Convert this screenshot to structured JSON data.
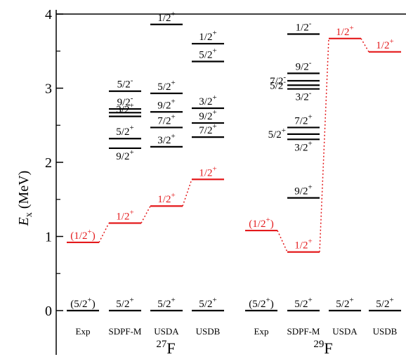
{
  "chart_data": {
    "type": "level-scheme",
    "ylabel": "E",
    "ylabel_sub": "x",
    "ylabel_unit": "(MeV)",
    "ylim": [
      0,
      4
    ],
    "yticks": [
      "0",
      "1",
      "2",
      "3",
      "4"
    ],
    "colors": {
      "positive": "#000000",
      "highlight": "#e41a1c"
    },
    "nuclei": [
      {
        "mass": "27",
        "symbol": "F",
        "columns": [
          {
            "name": "Exp",
            "levels": [
              {
                "e": 0.0,
                "label": "(5/2⁺)",
                "color": "black",
                "lx": 0,
                "side": "center"
              },
              {
                "e": 0.92,
                "label": "(1/2⁺)",
                "color": "red",
                "side": "center"
              }
            ]
          },
          {
            "name": "SDPF-M",
            "levels": [
              {
                "e": 0.0,
                "label": "5/2⁺",
                "color": "black"
              },
              {
                "e": 1.18,
                "label": "1/2⁺",
                "color": "red"
              },
              {
                "e": 2.19,
                "label": "9/2⁺",
                "color": "black",
                "below": true
              },
              {
                "e": 2.32,
                "label": "5/2⁺",
                "color": "black"
              },
              {
                "e": 2.62,
                "label": "3/2⁺",
                "color": "black"
              },
              {
                "e": 2.67,
                "label": "",
                "color": "black"
              },
              {
                "e": 2.72,
                "label": "9/2⁻",
                "color": "black"
              },
              {
                "e": 2.96,
                "label": "5/2⁻",
                "color": "black"
              }
            ]
          },
          {
            "name": "USDA",
            "levels": [
              {
                "e": 0.0,
                "label": "5/2⁺",
                "color": "black"
              },
              {
                "e": 1.41,
                "label": "1/2⁺",
                "color": "red"
              },
              {
                "e": 2.21,
                "label": "3/2⁺",
                "color": "black"
              },
              {
                "e": 2.47,
                "label": "7/2⁺",
                "color": "black"
              },
              {
                "e": 2.68,
                "label": "9/2⁺",
                "color": "black"
              },
              {
                "e": 2.93,
                "label": "5/2⁺",
                "color": "black"
              },
              {
                "e": 3.86,
                "label": "1/2⁺",
                "color": "black"
              }
            ]
          },
          {
            "name": "USDB",
            "levels": [
              {
                "e": 0.0,
                "label": "5/2⁺",
                "color": "black"
              },
              {
                "e": 1.77,
                "label": "1/2⁺",
                "color": "red"
              },
              {
                "e": 2.34,
                "label": "7/2⁺",
                "color": "black"
              },
              {
                "e": 2.53,
                "label": "9/2⁺",
                "color": "black"
              },
              {
                "e": 2.73,
                "label": "3/2⁺",
                "color": "black"
              },
              {
                "e": 3.36,
                "label": "5/2⁺",
                "color": "black"
              },
              {
                "e": 3.6,
                "label": "1/2⁺",
                "color": "black"
              }
            ]
          }
        ]
      },
      {
        "mass": "29",
        "symbol": "F",
        "columns": [
          {
            "name": "Exp",
            "levels": [
              {
                "e": 0.0,
                "label": "(5/2⁺)",
                "color": "black",
                "side": "center"
              },
              {
                "e": 1.08,
                "label": "(1/2⁺)",
                "color": "red",
                "side": "center"
              }
            ]
          },
          {
            "name": "SDPF-M",
            "levels": [
              {
                "e": 0.0,
                "label": "5/2⁺",
                "color": "black"
              },
              {
                "e": 0.79,
                "label": "1/2⁺",
                "color": "red"
              },
              {
                "e": 1.52,
                "label": "9/2⁺",
                "color": "black"
              },
              {
                "e": 2.31,
                "label": "3/2⁺",
                "color": "black",
                "below": true
              },
              {
                "e": 2.38,
                "label": "5/2⁺",
                "color": "black",
                "left": true
              },
              {
                "e": 2.47,
                "label": "7/2⁺",
                "color": "black"
              },
              {
                "e": 2.99,
                "label": "3/2⁻",
                "color": "black",
                "below": true
              },
              {
                "e": 3.04,
                "label": "5/2⁻",
                "color": "black",
                "left": true
              },
              {
                "e": 3.1,
                "label": "7/2⁻",
                "color": "black",
                "left": true
              },
              {
                "e": 3.2,
                "label": "9/2⁻",
                "color": "black"
              },
              {
                "e": 3.73,
                "label": "1/2⁻",
                "color": "black"
              }
            ]
          },
          {
            "name": "USDA",
            "levels": [
              {
                "e": 0.0,
                "label": "5/2⁺",
                "color": "black"
              },
              {
                "e": 3.67,
                "label": "1/2⁺",
                "color": "red"
              }
            ]
          },
          {
            "name": "USDB",
            "levels": [
              {
                "e": 0.0,
                "label": "5/2⁺",
                "color": "black"
              },
              {
                "e": 3.49,
                "label": "1/2⁺",
                "color": "red"
              }
            ]
          }
        ]
      }
    ]
  }
}
